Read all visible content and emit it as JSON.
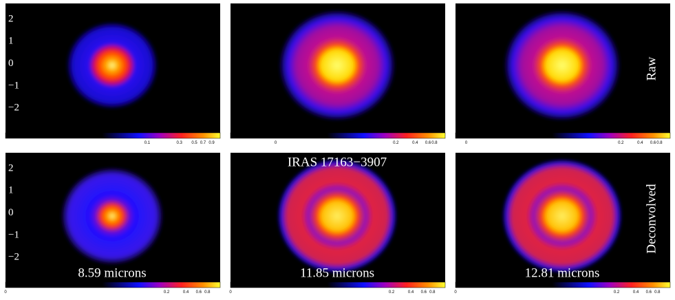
{
  "title": "IRAS 17163−3907",
  "row_labels": [
    "Raw",
    "Deconvolved"
  ],
  "panels": [
    {
      "y_ticks": [
        "2",
        "1",
        "0",
        "−1",
        "−2"
      ],
      "colorbar_ticks": [
        "0.1",
        "0.3",
        "0.5",
        "0.7",
        "0.9"
      ]
    },
    {
      "colorbar_ticks": [
        "0",
        "0.2",
        "0.4",
        "0.6",
        "0.8"
      ]
    },
    {
      "colorbar_ticks": [
        "0",
        "0.2",
        "0.4",
        "0.6",
        "0.8"
      ]
    },
    {
      "y_ticks": [
        "2",
        "1",
        "0",
        "−1",
        "−2"
      ],
      "colorbar_ticks": [
        "0",
        "0.2",
        "0.4",
        "0.6",
        "0.8"
      ],
      "caption": "8.59 microns"
    },
    {
      "colorbar_ticks": [
        "0",
        "0.2",
        "0.4",
        "0.6",
        "0.8"
      ],
      "caption": "11.85 microns"
    },
    {
      "colorbar_ticks": [
        "0",
        "0.2",
        "0.4",
        "0.6",
        "0.8"
      ],
      "caption": "12.81 microns"
    }
  ]
}
